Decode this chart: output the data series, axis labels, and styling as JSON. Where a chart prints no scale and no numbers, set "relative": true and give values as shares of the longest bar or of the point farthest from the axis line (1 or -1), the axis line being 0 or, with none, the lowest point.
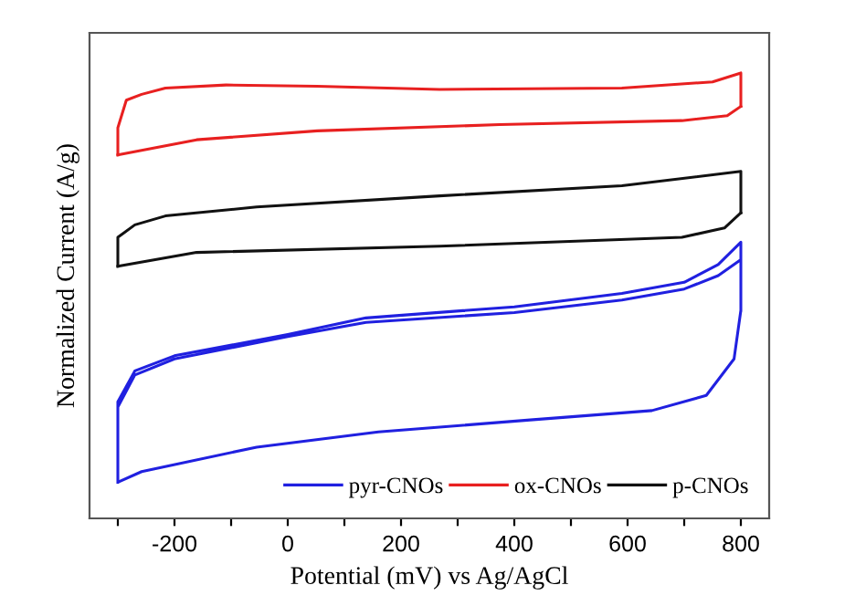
{
  "chart_data": {
    "type": "line",
    "relative": true,
    "xlabel": "Potential (mV) vs Ag/AgCl",
    "ylabel": "Normalized Current (A/g)",
    "xlim": [
      -350,
      850
    ],
    "xticks": [
      {
        "value": -300,
        "label": null
      },
      -200,
      {
        "value": -100,
        "label": null
      },
      0,
      {
        "value": 100,
        "label": null
      },
      200,
      {
        "value": 300,
        "label": null
      },
      400,
      {
        "value": 500,
        "label": null
      },
      600,
      {
        "value": 700,
        "label": null
      },
      800
    ],
    "grid": false,
    "legend": "bottom right",
    "marker": "none",
    "line_style": "solid",
    "series": [
      {
        "name": "pyr-CNOs",
        "color": "#2020e0",
        "x": [
          -300,
          -300,
          -270,
          -200,
          0,
          138,
          400,
          590,
          700,
          760,
          800,
          800,
          788,
          739,
          643,
          428,
          160,
          -55,
          -258,
          -300,
          -300,
          -270,
          -200,
          0,
          138,
          400,
          590,
          700,
          760,
          800,
          800
        ],
        "values": [
          0.081,
          0.262,
          0.331,
          0.365,
          0.413,
          0.45,
          0.475,
          0.505,
          0.53,
          0.57,
          0.62,
          0.467,
          0.358,
          0.276,
          0.242,
          0.221,
          0.194,
          0.16,
          0.105,
          0.081,
          0.25,
          0.322,
          0.358,
          0.408,
          0.44,
          0.462,
          0.49,
          0.515,
          0.545,
          0.581,
          0.467
        ]
      },
      {
        "name": "ox-CNOs",
        "color": "#e82020",
        "x": [
          -300,
          -300,
          -285,
          -258,
          -216,
          -109,
          52,
          268,
          590,
          750,
          800,
          800
        ],
        "values": [
          0.816,
          0.877,
          0.939,
          0.952,
          0.966,
          0.973,
          0.97,
          0.963,
          0.966,
          0.98,
          1.0,
          0.925
        ]
      },
      {
        "color": "#e82020",
        "x": [
          800,
          776,
          696,
          374,
          52,
          -161,
          -300
        ],
        "values": [
          0.925,
          0.904,
          0.893,
          0.884,
          0.87,
          0.85,
          0.816
        ]
      },
      {
        "name": "p-CNOs",
        "color": "#111111",
        "x": [
          -300,
          -300,
          -270,
          -216,
          -55,
          268,
          590,
          800,
          800
        ],
        "values": [
          0.566,
          0.631,
          0.659,
          0.679,
          0.699,
          0.724,
          0.747,
          0.779,
          0.686
        ]
      },
      {
        "color": "#111111",
        "x": [
          800,
          771,
          696,
          268,
          -161,
          -300
        ],
        "values": [
          0.686,
          0.652,
          0.631,
          0.611,
          0.597,
          0.566
        ]
      }
    ]
  }
}
